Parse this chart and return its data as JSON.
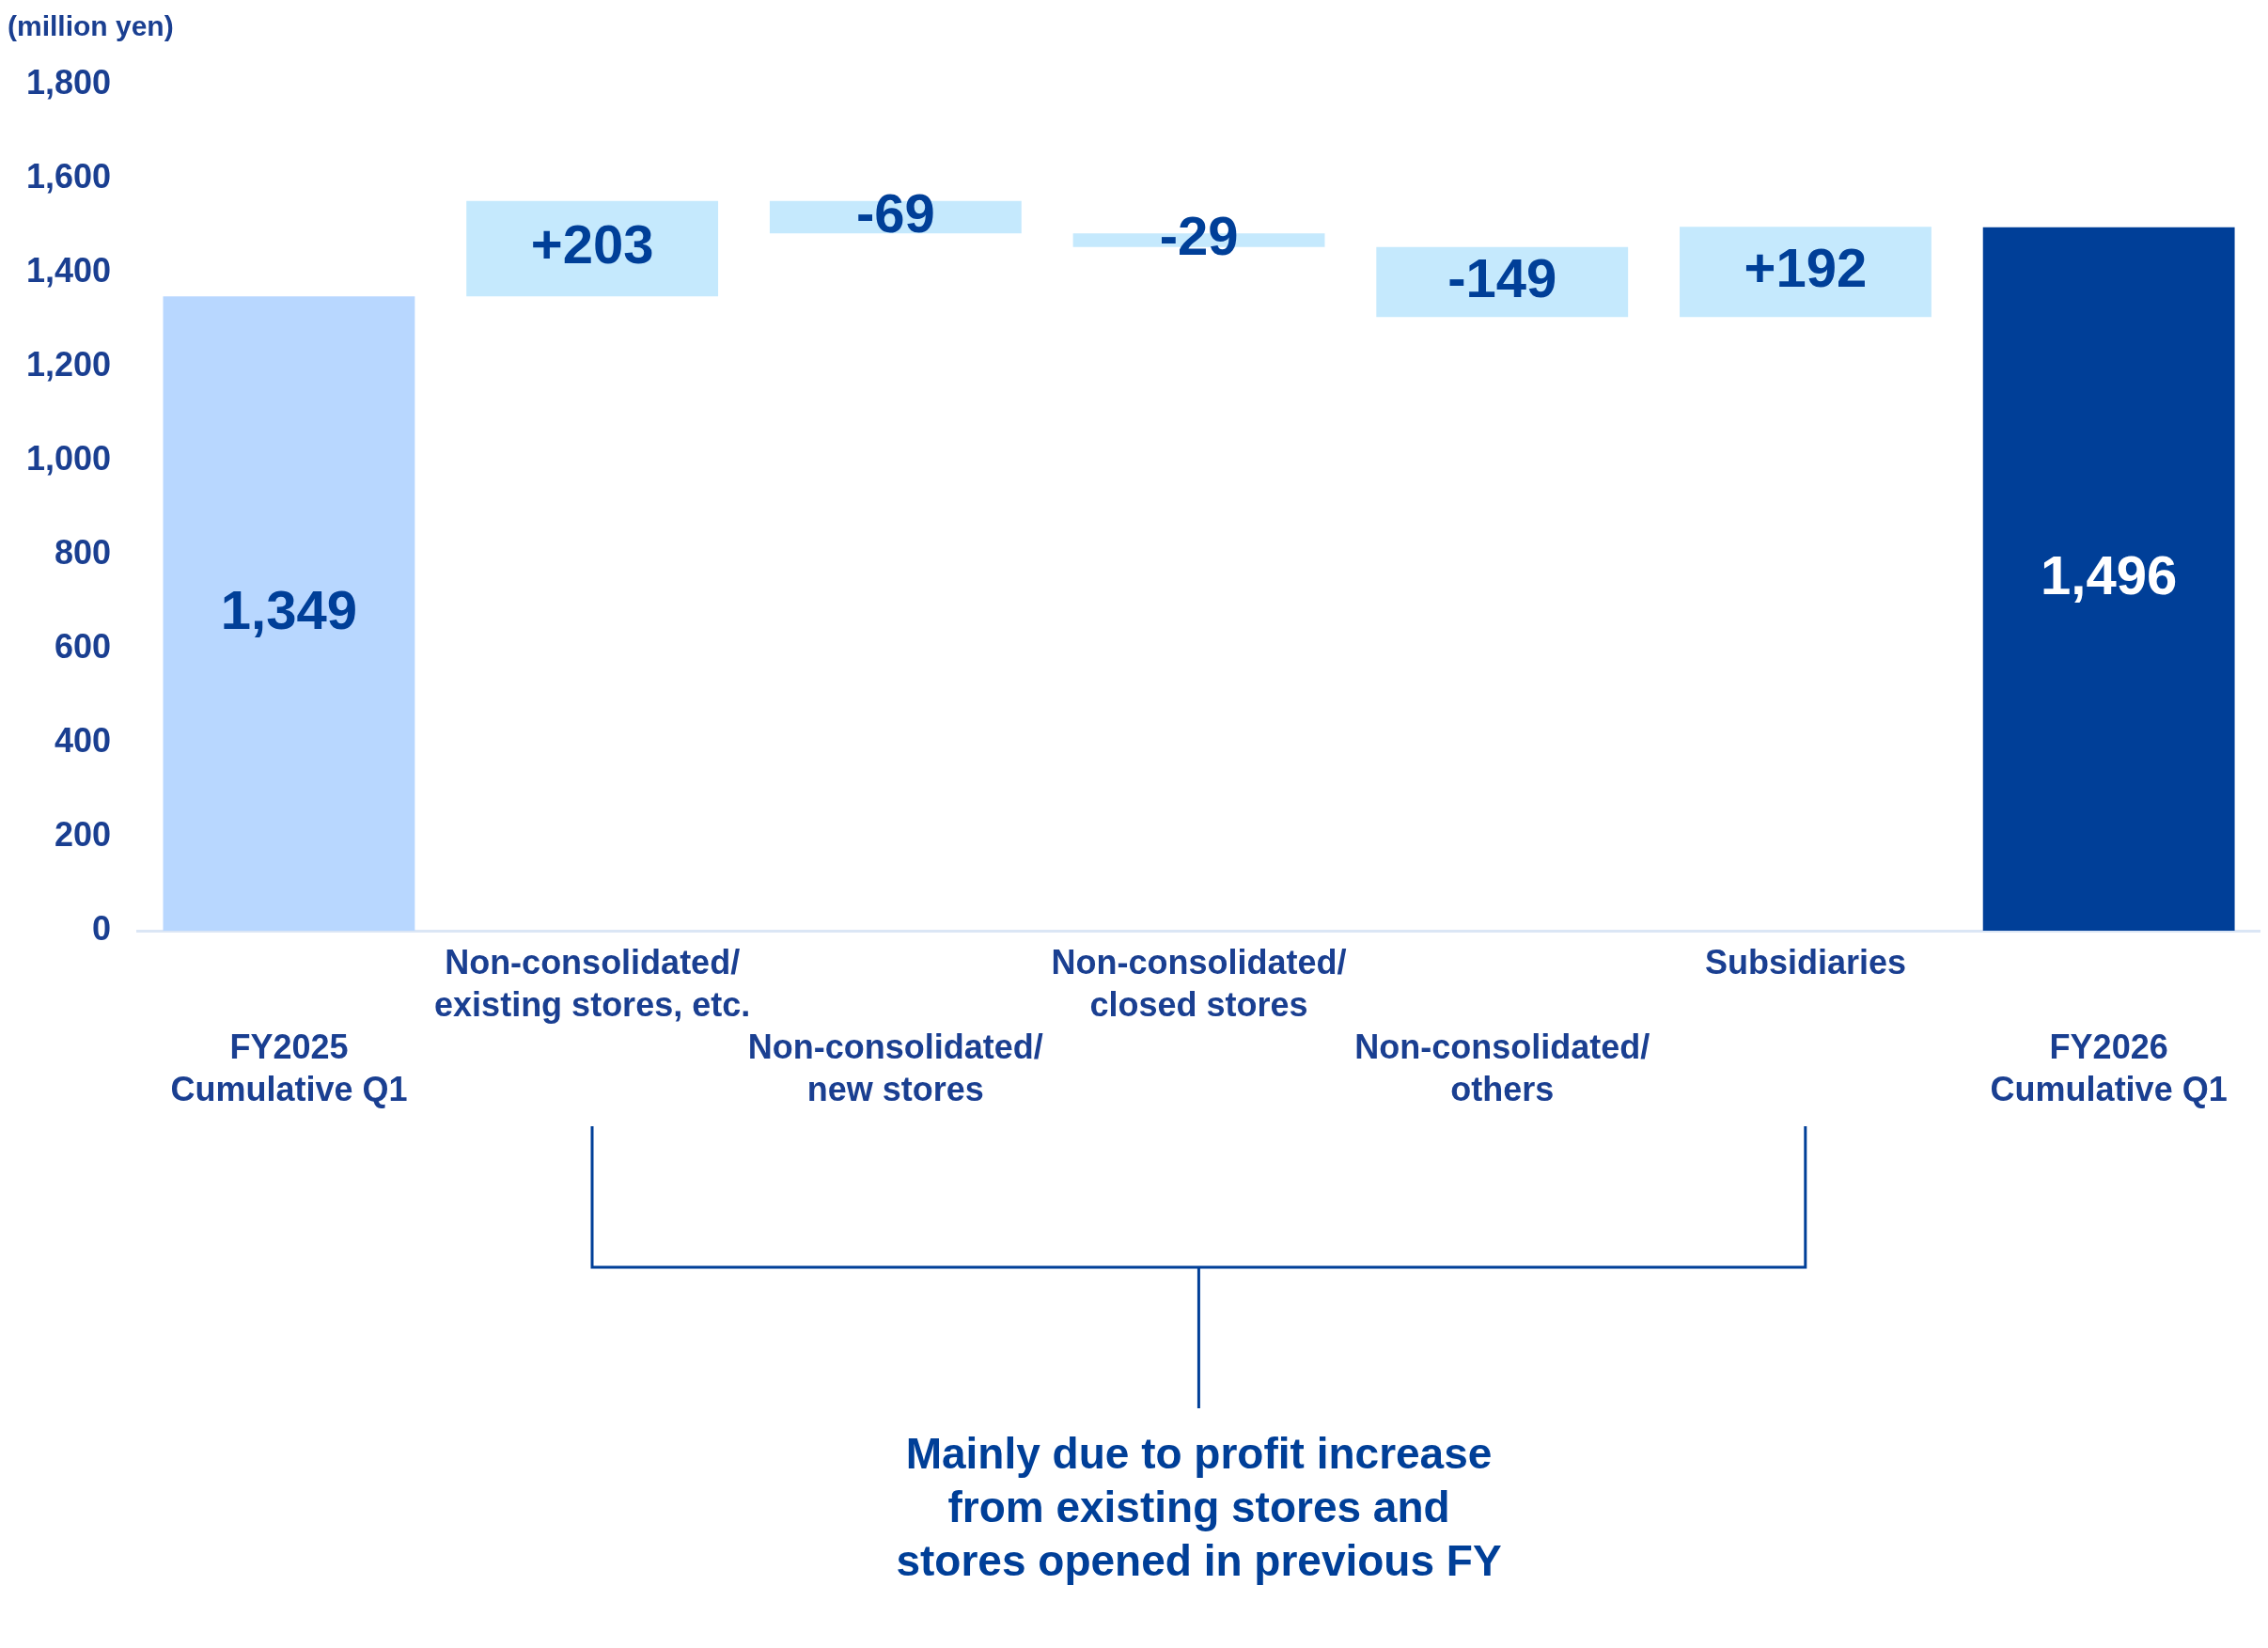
{
  "chart_data": {
    "type": "bar",
    "ylabel": "(million yen)",
    "categories": [
      "FY2025\nCumulative Q1",
      "Non-consolidated/\nexisting stores, etc.",
      "Non-consolidated/\nnew stores",
      "Non-consolidated/\nclosed stores",
      "Non-consolidated/\nothers",
      "Subsidiaries",
      "FY2026\nCumulative Q1"
    ],
    "values": [
      1349,
      203,
      -69,
      -29,
      -149,
      192,
      1496
    ],
    "base": [
      0,
      1349,
      1552,
      1483,
      1454,
      1305,
      0
    ],
    "colors": [
      "#b8d7ff",
      "#c5e9fd",
      "#c5e9fd",
      "#c5e9fd",
      "#c5e9fd",
      "#c5e9fd",
      "#003f98"
    ],
    "value_labels": [
      "1,349",
      "+203",
      "-69",
      "-29",
      "-149",
      "+192",
      "1,496"
    ],
    "ylim": [
      0,
      1800
    ],
    "yticks": [
      0,
      {
        "value": 200,
        "label": "200"
      },
      {
        "value": 400,
        "label": "400"
      },
      {
        "value": 600,
        "label": "600"
      },
      {
        "value": 800,
        "label": "800"
      },
      {
        "value": 1000,
        "label": "1,000"
      },
      {
        "value": 1200,
        "label": "1,200"
      },
      {
        "value": 1400,
        "label": "1,400"
      },
      {
        "value": 1600,
        "label": "1,600"
      },
      {
        "value": 1800,
        "label": "1,800"
      }
    ],
    "legend": false,
    "annotations": [
      "Mainly due to profit increase from existing stores and stores opened in previous FY"
    ]
  }
}
